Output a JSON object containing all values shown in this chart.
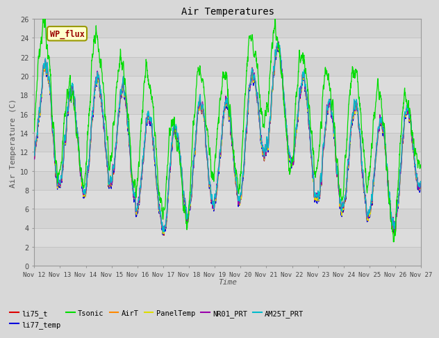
{
  "title": "Air Temperatures",
  "xlabel": "Time",
  "ylabel": "Air Temperature (C)",
  "ylim": [
    0,
    26
  ],
  "yticks": [
    0,
    2,
    4,
    6,
    8,
    10,
    12,
    14,
    16,
    18,
    20,
    22,
    24,
    26
  ],
  "x_start_day": 12,
  "x_end_day": 27,
  "xtick_days": [
    12,
    13,
    14,
    15,
    16,
    17,
    18,
    19,
    20,
    21,
    22,
    23,
    24,
    25,
    26,
    27
  ],
  "series_colors": {
    "li75_t": "#dd0000",
    "li77_temp": "#0000dd",
    "Tsonic": "#00dd00",
    "AirT": "#ff8800",
    "PanelTemp": "#dddd00",
    "NR01_PRT": "#9900aa",
    "AM25T_PRT": "#00bbcc"
  },
  "legend_label": "WP_flux",
  "legend_box_facecolor": "#ffffcc",
  "legend_box_edgecolor": "#999900",
  "legend_text_color": "#990000",
  "fig_bg_color": "#d8d8d8",
  "plot_bg_color": "#e8e8e8",
  "band_color_light": "#e0e0e0",
  "band_color_dark": "#d0d0d0",
  "grid_line_color": "#c8c8c8",
  "seed": 12345,
  "n_points": 2160
}
